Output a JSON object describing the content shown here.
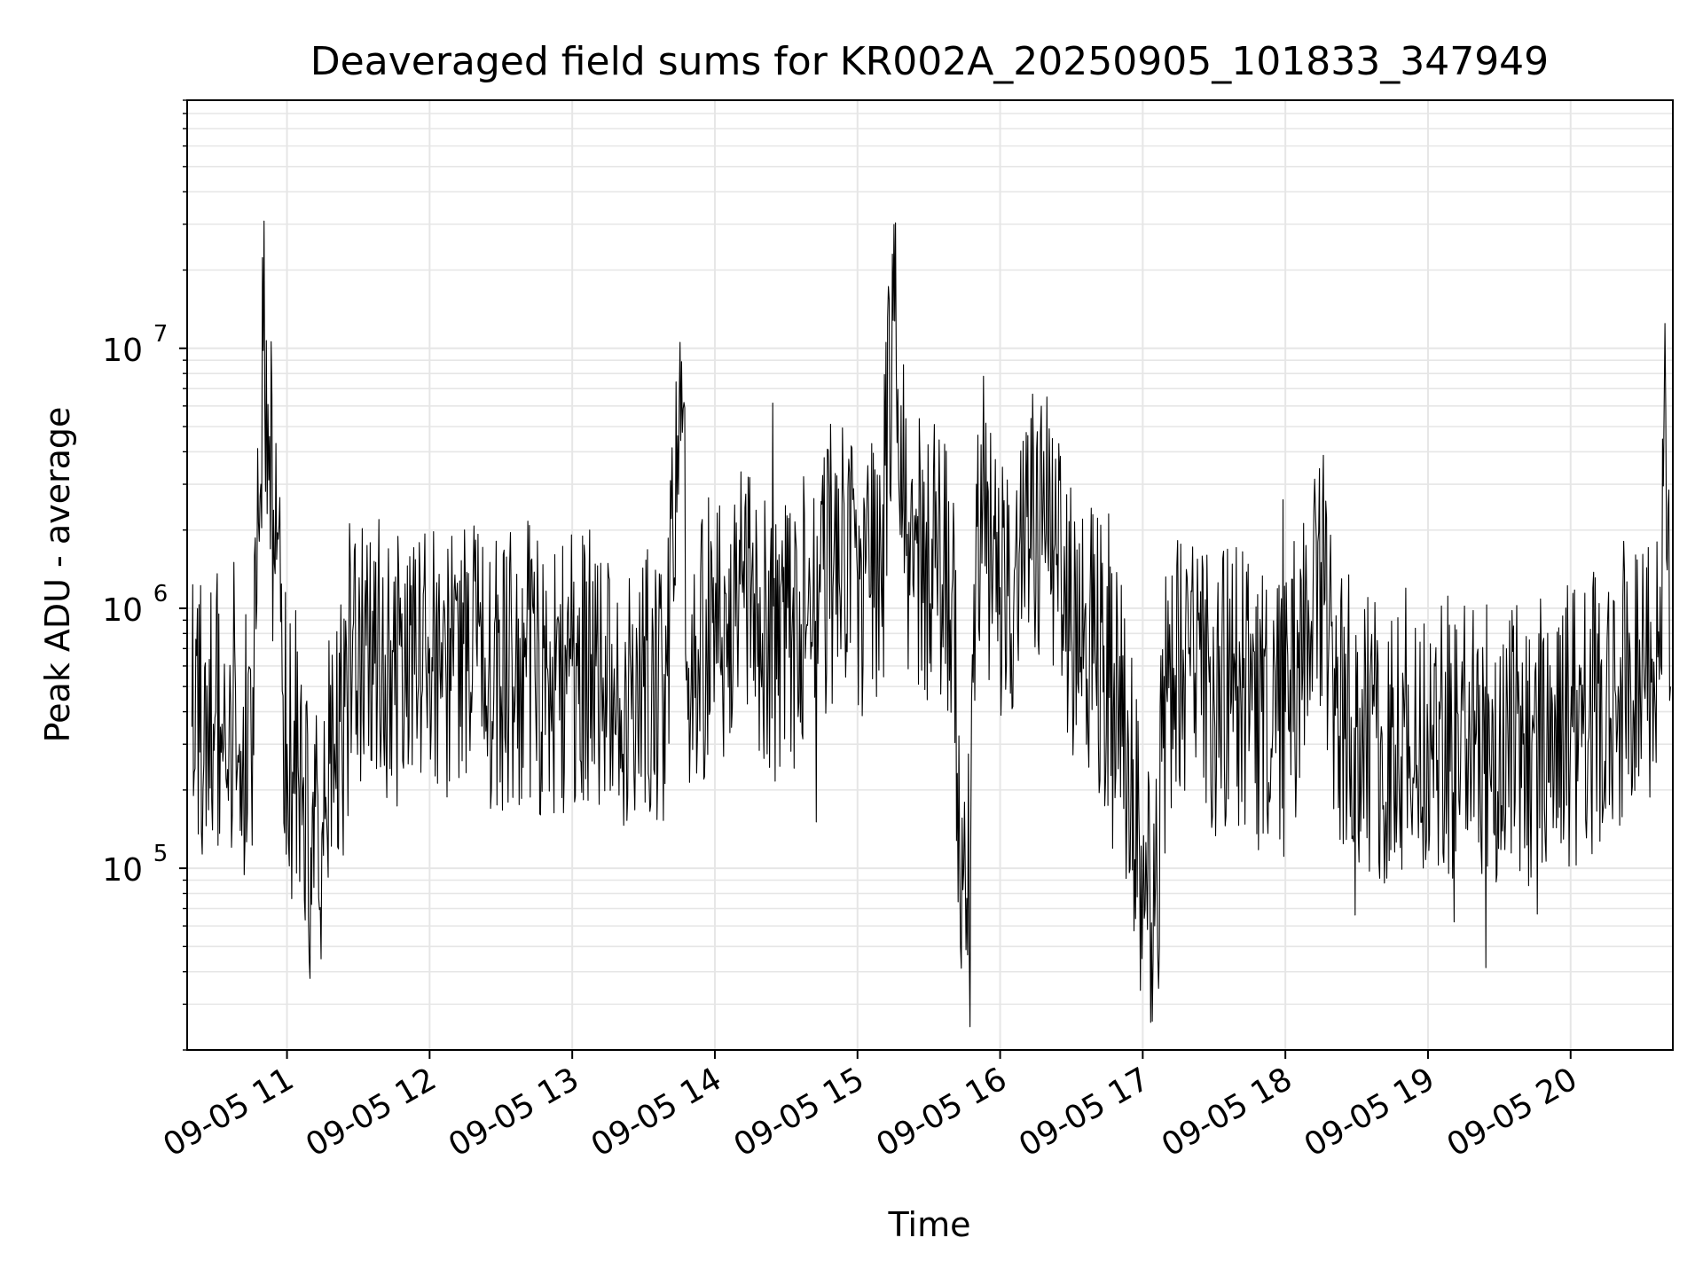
{
  "chart_data": {
    "type": "line",
    "title": "Deaveraged field sums for KR002A_20250905_101833_347949",
    "xlabel": "Time",
    "ylabel": "Peak ADU - average",
    "x_ticks": [
      "09-05 11",
      "09-05 12",
      "09-05 13",
      "09-05 14",
      "09-05 15",
      "09-05 16",
      "09-05 17",
      "09-05 18",
      "09-05 19",
      "09-05 20"
    ],
    "y_ticks": [
      {
        "base": "10",
        "exp": "5",
        "value": 100000
      },
      {
        "base": "10",
        "exp": "6",
        "value": 1000000
      },
      {
        "base": "10",
        "exp": "7",
        "value": 10000000
      }
    ],
    "x_range": [
      "2025-09-05 10:18",
      "2025-09-05 20:43"
    ],
    "ylim": [
      20000,
      90000000
    ],
    "yscale": "log",
    "grid": true,
    "legend": "none",
    "line_color": "#000000",
    "series": [
      {
        "x": [
          "10:20",
          "10:30",
          "10:40",
          "10:45",
          "10:50",
          "11:00",
          "11:05",
          "11:10",
          "11:15",
          "11:20",
          "11:30",
          "11:40",
          "11:50",
          "12:00",
          "12:10",
          "12:20",
          "12:30",
          "12:40",
          "12:50",
          "13:00",
          "13:10",
          "13:20",
          "13:30",
          "13:40",
          "13:45",
          "13:50",
          "14:00",
          "14:10",
          "14:20",
          "14:30",
          "14:40",
          "14:50",
          "15:00",
          "15:10",
          "15:15",
          "15:20",
          "15:30",
          "15:40",
          "15:43",
          "15:47",
          "15:50",
          "16:00",
          "16:10",
          "16:20",
          "16:30",
          "16:40",
          "16:50",
          "16:55",
          "17:00",
          "17:05",
          "17:10",
          "17:20",
          "17:30",
          "17:40",
          "17:50",
          "18:00",
          "18:10",
          "18:15",
          "18:20",
          "18:30",
          "18:40",
          "18:50",
          "19:00",
          "19:10",
          "19:20",
          "19:30",
          "19:40",
          "19:50",
          "20:00",
          "20:10",
          "20:20",
          "20:30",
          "20:38",
          "20:40",
          "20:42"
        ],
        "y": [
          350000,
          400000,
          300000,
          250000,
          9800000,
          300000,
          200000,
          120000,
          150000,
          300000,
          600000,
          700000,
          500000,
          700000,
          550000,
          600000,
          500000,
          650000,
          500000,
          600000,
          600000,
          450000,
          500000,
          550000,
          6300000,
          500000,
          900000,
          1000000,
          800000,
          700000,
          1200000,
          1500000,
          1300000,
          1200000,
          12800000,
          2000000,
          1500000,
          1300000,
          100000,
          50000,
          3000000,
          1200000,
          1500000,
          1800000,
          900000,
          700000,
          400000,
          200000,
          80000,
          60000,
          500000,
          550000,
          450000,
          500000,
          400000,
          400000,
          800000,
          1500000,
          500000,
          350000,
          300000,
          350000,
          300000,
          320000,
          300000,
          300000,
          300000,
          320000,
          350000,
          400000,
          500000,
          550000,
          600000,
          5800000,
          500000
        ]
      }
    ]
  }
}
